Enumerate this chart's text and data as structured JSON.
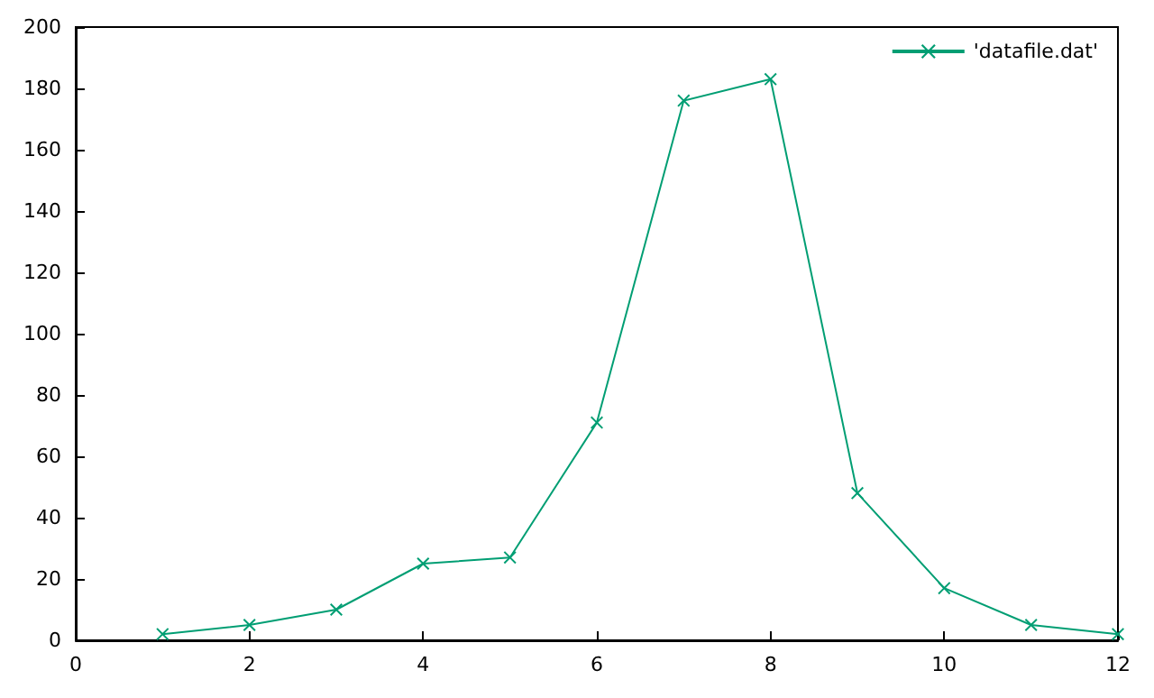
{
  "chart_data": {
    "type": "line",
    "x": [
      1,
      2,
      3,
      4,
      5,
      6,
      7,
      8,
      9,
      10,
      11,
      12
    ],
    "series": [
      {
        "name": "'datafile.dat'",
        "color": "#009e73",
        "values": [
          2,
          5,
          10,
          25,
          27,
          71,
          176,
          183,
          48,
          17,
          5,
          2
        ]
      }
    ],
    "xlim": [
      0,
      12
    ],
    "xticks": [
      0,
      2,
      4,
      6,
      8,
      10,
      12
    ],
    "ylim": [
      0,
      200
    ],
    "yticks": [
      0,
      20,
      40,
      60,
      80,
      100,
      120,
      140,
      160,
      180,
      200
    ],
    "grid": false,
    "legend": "top right",
    "marker": "cross",
    "line_style": "solid"
  }
}
